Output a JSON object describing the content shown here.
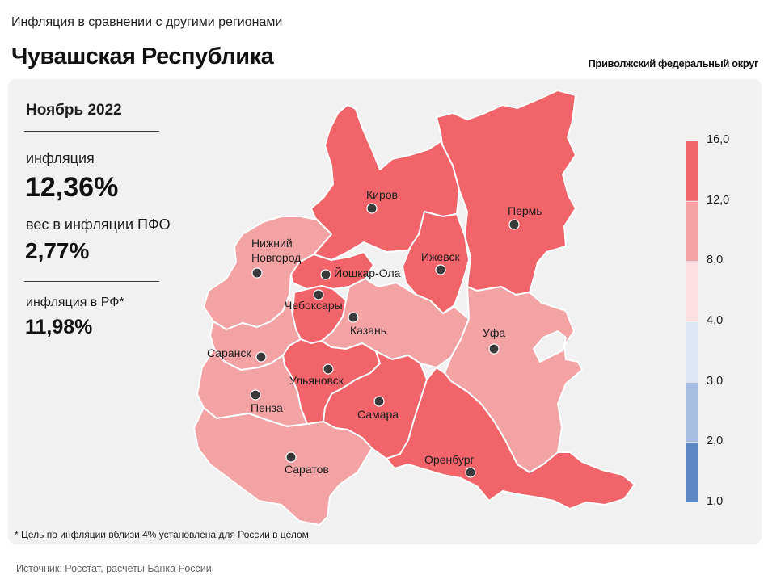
{
  "header": {
    "subtitle": "Инфляция в сравнении с другими регионами",
    "title": "Чувашская Республика",
    "district": "Приволжский федеральный округ"
  },
  "stats": {
    "period": "Ноябрь 2022",
    "inflation_label": "инфляция",
    "inflation_value": "12,36%",
    "weight_label": "вес в инфляции ПФО",
    "weight_value": "2,77%",
    "rf_label": "инфляция в РФ*",
    "rf_value": "11,98%"
  },
  "map": {
    "highlighted_region": "Чебоксары",
    "colors": {
      "high": "#f1646a",
      "mid": "#f4a3a5",
      "highlight_outline": "#ffffff"
    },
    "cities": [
      {
        "name": "Киров",
        "bin": "12,0–16,0"
      },
      {
        "name": "Пермь",
        "bin": "12,0–16,0"
      },
      {
        "name": "Нижний\nНовгород",
        "bin": "8,0–12,0"
      },
      {
        "name": "Йошкар-Ола",
        "bin": "12,0–16,0"
      },
      {
        "name": "Ижевск",
        "bin": "12,0–16,0"
      },
      {
        "name": "Чебоксары",
        "bin": "12,0–16,0"
      },
      {
        "name": "Казань",
        "bin": "8,0–12,0"
      },
      {
        "name": "Уфа",
        "bin": "8,0–12,0"
      },
      {
        "name": "Саранск",
        "bin": "8,0–12,0"
      },
      {
        "name": "Ульяновск",
        "bin": "12,0–16,0"
      },
      {
        "name": "Пенза",
        "bin": "8,0–12,0"
      },
      {
        "name": "Самара",
        "bin": "12,0–16,0"
      },
      {
        "name": "Саратов",
        "bin": "8,0–12,0"
      },
      {
        "name": "Оренбург",
        "bin": "12,0–16,0"
      }
    ]
  },
  "legend": {
    "ticks": [
      "16,0",
      "12,0",
      "8,0",
      "4,0",
      "3,0",
      "2,0",
      "1,0"
    ],
    "bins": [
      {
        "from": "12,0",
        "to": "16,0",
        "color": "#f1646a"
      },
      {
        "from": "8,0",
        "to": "12,0",
        "color": "#f4a3a5"
      },
      {
        "from": "4,0",
        "to": "8,0",
        "color": "#fbdfe2"
      },
      {
        "from": "3,0",
        "to": "4,0",
        "color": "#dde5f4"
      },
      {
        "from": "2,0",
        "to": "3,0",
        "color": "#a6bde0"
      },
      {
        "from": "1,0",
        "to": "2,0",
        "color": "#5e88c4"
      }
    ]
  },
  "footnote": "* Цель по инфляции вблизи 4% установлена для России в целом",
  "source": "Источник: Росстат, расчеты Банка России"
}
